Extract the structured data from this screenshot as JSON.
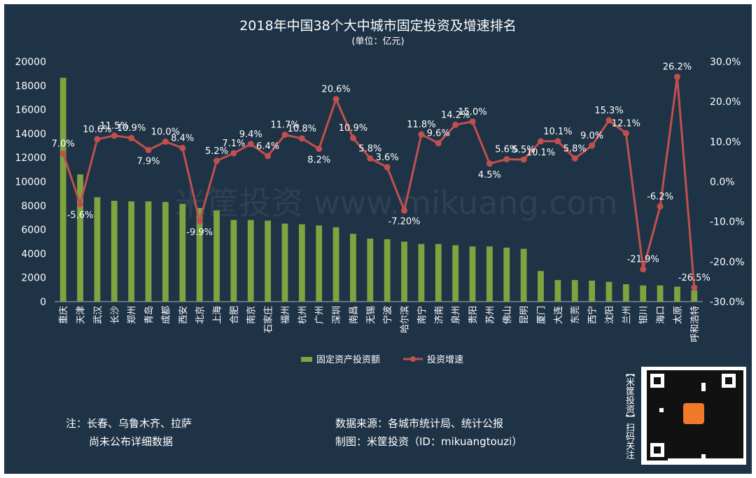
{
  "title": "2018年中国38个大中城市固定投资及增速排名",
  "subtitle": "(单位：亿元)",
  "watermark": "米筐投资 www.mikuang.com",
  "legend": {
    "bar": "固定资产投资额",
    "line": "投资增速"
  },
  "notes": {
    "left_line1": "注：长春、乌鲁木齐、拉萨",
    "left_line2": "尚未公布详细数据",
    "source": "数据来源：各城市统计局、统计公报",
    "credit": "制图：米筐投资（ID：mikuangtouzi）"
  },
  "side_text": "【米筐投资】扫码关注",
  "colors": {
    "background": "#1f3346",
    "bar": "#7fa33f",
    "line": "#c0504d",
    "text": "#ffffff"
  },
  "chart_data": {
    "type": "bar",
    "categories": [
      "重庆",
      "天津",
      "武汉",
      "长沙",
      "郑州",
      "青岛",
      "成都",
      "西安",
      "北京",
      "上海",
      "合肥",
      "南京",
      "石家庄",
      "福州",
      "杭州",
      "广州",
      "深圳",
      "南昌",
      "无锡",
      "宁波",
      "哈尔滨",
      "南宁",
      "济南",
      "泉州",
      "贵阳",
      "苏州",
      "佛山",
      "昆明",
      "厦门",
      "大连",
      "东莞",
      "西宁",
      "沈阳",
      "兰州",
      "银川",
      "海口",
      "太原",
      "呼和浩特"
    ],
    "series": [
      {
        "name": "固定资产投资额",
        "type": "bar",
        "axis": "left",
        "values": [
          18650,
          10600,
          8700,
          8400,
          8350,
          8350,
          8300,
          8150,
          7800,
          7600,
          6800,
          6800,
          6750,
          6500,
          6450,
          6350,
          6200,
          5650,
          5250,
          5200,
          5000,
          4800,
          4800,
          4700,
          4600,
          4600,
          4500,
          4400,
          2550,
          1800,
          1800,
          1750,
          1650,
          1450,
          1350,
          1350,
          1250,
          950
        ]
      },
      {
        "name": "投资增速",
        "type": "line",
        "axis": "right",
        "values": [
          7.0,
          -5.6,
          10.6,
          11.5,
          10.9,
          7.9,
          10.0,
          8.4,
          -9.9,
          5.2,
          7.1,
          9.4,
          6.4,
          11.7,
          10.8,
          8.2,
          20.6,
          10.9,
          5.8,
          3.6,
          -7.2,
          11.8,
          9.6,
          14.2,
          15.0,
          4.5,
          5.6,
          5.5,
          10.1,
          10.1,
          5.8,
          9.0,
          15.3,
          12.1,
          -21.9,
          -6.2,
          26.2,
          -26.5
        ],
        "labels": [
          "7.0%",
          "-5.6%",
          "10.6%",
          "11.5%",
          "10.9%",
          "7.9%",
          "10.0%",
          "8.4%",
          "-9.9%",
          "5.2%",
          "7.1%",
          "9.4%",
          "6.4%",
          "11.7%",
          "10.8%",
          "8.2%",
          "20.6%",
          "10.9%",
          "5.8%",
          "3.6%",
          "-7.20%",
          "11.8%",
          "9.6%",
          "14.2%",
          "15.0%",
          "4.5%",
          "5.6%",
          "5.5%",
          "10.1%",
          "10.1%",
          "5.8%",
          "9.0%",
          "15.3%",
          "12.1%",
          "-21.9%",
          "-6.2%",
          "26.2%",
          "-26.5%"
        ],
        "label_side": [
          "above",
          "below",
          "above",
          "above",
          "above",
          "below",
          "above",
          "above",
          "below",
          "above",
          "above",
          "above",
          "above",
          "above",
          "above",
          "below",
          "above",
          "above",
          "above",
          "above",
          "below",
          "above",
          "above",
          "above",
          "above",
          "below",
          "above",
          "above",
          "below",
          "above",
          "above",
          "above",
          "above",
          "above",
          "above",
          "above",
          "above",
          "above"
        ]
      }
    ],
    "y_left": {
      "min": 0,
      "max": 20000,
      "ticks": [
        "0",
        "2000",
        "4000",
        "6000",
        "8000",
        "10000",
        "12000",
        "14000",
        "16000",
        "18000",
        "20000"
      ]
    },
    "y_right": {
      "min": -30,
      "max": 30,
      "ticks": [
        "-30.0%",
        "-20.0%",
        "-10.0%",
        "0.0%",
        "10.0%",
        "20.0%",
        "30.0%"
      ]
    },
    "grid": false,
    "legend_position": "bottom"
  }
}
